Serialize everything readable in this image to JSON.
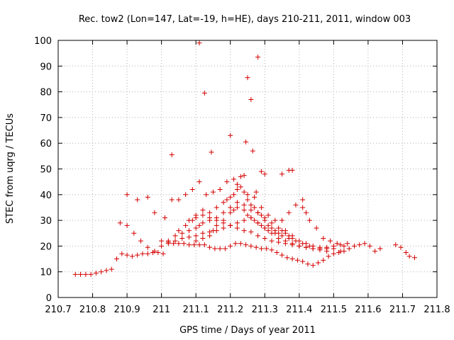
{
  "chart_data": {
    "type": "scatter",
    "title": "Rec. tow2 (Lon=147, Lat=-19, h=HE), days 210-211, 2011, window 003",
    "xlabel": "GPS time / Days of year 2011",
    "ylabel": "STEC from uqrg / TECUs",
    "xlim": [
      210.7,
      211.8
    ],
    "ylim": [
      0,
      100
    ],
    "xticks": [
      210.7,
      210.8,
      210.9,
      211,
      211.1,
      211.2,
      211.3,
      211.4,
      211.5,
      211.6,
      211.7,
      211.8
    ],
    "xtick_labels": [
      "210.7",
      "210.8",
      "210.9",
      "211",
      "211.1",
      "211.2",
      "211.3",
      "211.4",
      "211.5",
      "211.6",
      "211.7",
      "211.8"
    ],
    "yticks": [
      0,
      10,
      20,
      30,
      40,
      50,
      60,
      70,
      80,
      90,
      100
    ],
    "ytick_labels": [
      "0",
      "10",
      "20",
      "30",
      "40",
      "50",
      "60",
      "70",
      "80",
      "90",
      "100"
    ],
    "grid": true,
    "marker": "+",
    "color": "#d40000",
    "series": [
      {
        "x": [
          210.75,
          210.765,
          210.78,
          210.795,
          210.81,
          210.825,
          210.84,
          210.855,
          210.87,
          210.885,
          210.9,
          210.915,
          210.93,
          210.945,
          210.96,
          210.975,
          210.99,
          211.005,
          211.02,
          211.035,
          211.05,
          211.065,
          211.08,
          211.095,
          211.11,
          211.125,
          211.14,
          211.155,
          211.17,
          211.185,
          211.2,
          211.215,
          211.23,
          211.245,
          211.26,
          211.275,
          211.29,
          211.305,
          211.32,
          211.335,
          211.35,
          211.365,
          211.38,
          211.395,
          211.41,
          211.425,
          211.44,
          211.455,
          211.47,
          211.485,
          211.5,
          211.515,
          211.53,
          211.545,
          211.56,
          211.575,
          211.59,
          211.605,
          211.62,
          211.635,
          211.68,
          211.695,
          211.71,
          211.72,
          211.735
        ],
        "y": [
          9,
          9,
          9,
          9,
          9.5,
          10,
          10.5,
          11,
          15,
          17,
          16.5,
          16,
          16.5,
          17,
          17,
          17.5,
          17.5,
          17,
          21,
          21,
          21,
          21,
          20.5,
          20.5,
          20.5,
          20.5,
          19.5,
          19,
          19,
          19,
          20,
          21,
          21,
          20.5,
          20,
          19.5,
          19,
          19,
          18.5,
          17.5,
          16.5,
          15.5,
          15,
          14.5,
          14,
          13,
          12.5,
          13.5,
          14.5,
          16,
          17,
          17.5,
          18,
          19,
          20,
          20.5,
          21,
          20,
          18,
          19,
          20.5,
          19.5,
          17.5,
          16,
          15.5
        ]
      },
      {
        "x": [
          210.88,
          210.9,
          210.92,
          210.94,
          210.96,
          210.98,
          211.0,
          211.02,
          211.04,
          211.06,
          211.08,
          211.1,
          211.11,
          211.12,
          211.14,
          211.16,
          211.18,
          211.2,
          211.22,
          211.24,
          211.26,
          211.28,
          211.3,
          211.32,
          211.34,
          211.36,
          211.38,
          211.4,
          211.42,
          211.44,
          211.46,
          211.48,
          211.5,
          211.52
        ],
        "y": [
          29,
          28,
          25,
          22,
          19.5,
          18,
          20,
          22,
          24,
          25,
          26,
          27,
          28,
          29,
          30,
          31,
          33,
          35,
          37,
          36,
          34,
          33,
          31,
          29,
          27,
          26,
          24,
          22,
          21,
          20,
          19.5,
          19,
          19,
          18
        ]
      },
      {
        "x": [
          210.9,
          210.93,
          210.96,
          210.98,
          211.01,
          211.03,
          211.05,
          211.07,
          211.09,
          211.11,
          211.13,
          211.15,
          211.17,
          211.19,
          211.21,
          211.23,
          211.25,
          211.27,
          211.29,
          211.31,
          211.33,
          211.35,
          211.37,
          211.39,
          211.41,
          211.43,
          211.45,
          211.47,
          211.49,
          211.51,
          211.53
        ],
        "y": [
          40,
          38,
          39,
          33,
          31,
          38,
          38,
          40,
          42,
          45,
          40,
          41,
          42,
          45,
          46,
          47,
          40,
          39,
          35,
          32,
          30,
          30,
          33,
          36,
          35,
          30,
          27,
          23,
          22,
          21,
          20
        ]
      },
      {
        "x": [
          211.0,
          211.02,
          211.04,
          211.06,
          211.08,
          211.1,
          211.12,
          211.14,
          211.16,
          211.18,
          211.2,
          211.22,
          211.24,
          211.26,
          211.28,
          211.3,
          211.32,
          211.34,
          211.36,
          211.38,
          211.4,
          211.42,
          211.44,
          211.46,
          211.48,
          211.5,
          211.52,
          211.54
        ],
        "y": [
          22,
          21.5,
          22,
          23,
          23.5,
          24,
          25,
          25.5,
          26,
          27,
          28,
          29,
          30,
          31,
          29,
          27,
          25,
          23,
          22,
          21,
          20,
          19.5,
          19,
          19,
          19.5,
          20,
          20.5,
          21
        ]
      },
      {
        "x": [
          211.05,
          211.07,
          211.09,
          211.1,
          211.12,
          211.14,
          211.16,
          211.18,
          211.19,
          211.2,
          211.21,
          211.22,
          211.23,
          211.24,
          211.25,
          211.26,
          211.27,
          211.28,
          211.29,
          211.3,
          211.31,
          211.32,
          211.33,
          211.34,
          211.35,
          211.36,
          211.37,
          211.38
        ],
        "y": [
          26,
          28,
          30,
          32,
          34,
          33,
          35,
          37,
          38,
          39,
          40,
          42,
          43,
          41,
          38,
          36,
          35,
          33,
          32,
          30,
          28,
          27,
          26,
          25,
          26,
          25,
          24,
          23
        ]
      },
      {
        "x": [
          211.08,
          211.1,
          211.12,
          211.14,
          211.16,
          211.18,
          211.2,
          211.22,
          211.24,
          211.26,
          211.28,
          211.3,
          211.32,
          211.34,
          211.36,
          211.38,
          211.4,
          211.42,
          211.44,
          211.46,
          211.48
        ],
        "y": [
          30,
          31,
          32,
          31,
          30,
          29,
          28,
          27,
          26,
          25.5,
          24,
          23,
          22,
          21.5,
          21,
          20.5,
          20,
          19.5,
          19,
          18.5,
          18
        ]
      },
      {
        "x": [
          211.1,
          211.12,
          211.14,
          211.15,
          211.16,
          211.18,
          211.2,
          211.21,
          211.22,
          211.24,
          211.25,
          211.26,
          211.27,
          211.28,
          211.29,
          211.3,
          211.31,
          211.33,
          211.35,
          211.37,
          211.39,
          211.41,
          211.43
        ],
        "y": [
          22,
          23,
          24,
          26,
          28,
          30,
          33,
          34,
          35,
          34,
          32,
          31,
          30,
          29,
          28,
          27,
          26,
          25,
          24,
          23,
          22,
          21,
          20
        ]
      },
      {
        "x": [
          211.03,
          211.11,
          211.125,
          211.145,
          211.2,
          211.22,
          211.24,
          211.245,
          211.25,
          211.26,
          211.265,
          211.275,
          211.28,
          211.29,
          211.3,
          211.35,
          211.37,
          211.38,
          211.41,
          211.42
        ],
        "y": [
          55.5,
          99,
          79.5,
          56.5,
          63,
          44,
          47.5,
          60.5,
          85.5,
          77,
          57,
          41,
          93.5,
          49,
          48,
          48,
          49.5,
          49.5,
          38,
          33
        ]
      }
    ]
  }
}
